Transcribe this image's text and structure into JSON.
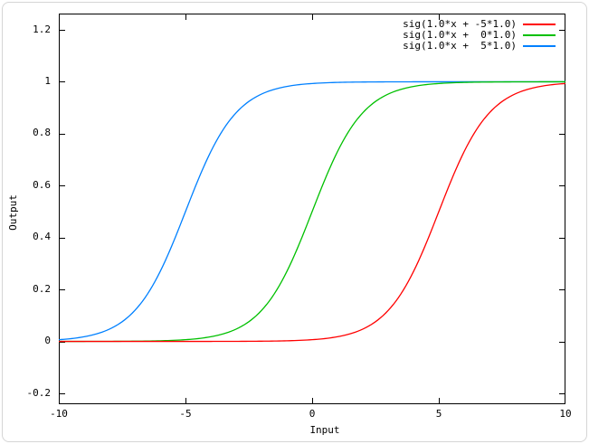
{
  "colors": {
    "background": "#ffffff",
    "frame": "#000000",
    "text": "#000000",
    "page_border": "#d5d5d5"
  },
  "chart_data": {
    "type": "line",
    "title": "",
    "xlabel": "Input",
    "ylabel": "Output",
    "xlim": [
      -10,
      10
    ],
    "ylim": [
      -0.2,
      1.2
    ],
    "grid": false,
    "legend": {
      "position": "top-right-inside",
      "entries": [
        "sig(1.0*x + -5*1.0)",
        "sig(1.0*x +  0*1.0)",
        "sig(1.0*x +  5*1.0)"
      ]
    },
    "x_ticks": {
      "values": [
        -10,
        -5,
        0,
        5,
        10
      ],
      "labels": [
        "-10",
        "-5",
        "0",
        "5",
        "10"
      ]
    },
    "y_ticks": {
      "values": [
        -0.2,
        0,
        0.2,
        0.4,
        0.6,
        0.8,
        1,
        1.2
      ],
      "labels": [
        "-0.2",
        "0",
        "0.2",
        "0.4",
        "0.6",
        "0.8",
        "1",
        "1.2"
      ]
    },
    "x_sample_step": 0.1,
    "series": [
      {
        "name": "sig(1.0*x + -5*1.0)",
        "color": "#ff0000",
        "function": "sigmoid",
        "gain": 1.0,
        "bias": -5.0
      },
      {
        "name": "sig(1.0*x +  0*1.0)",
        "color": "#00c000",
        "function": "sigmoid",
        "gain": 1.0,
        "bias": 0.0
      },
      {
        "name": "sig(1.0*x +  5*1.0)",
        "color": "#0080ff",
        "function": "sigmoid",
        "gain": 1.0,
        "bias": 5.0
      }
    ],
    "draw_order": [
      2,
      1,
      0
    ]
  }
}
